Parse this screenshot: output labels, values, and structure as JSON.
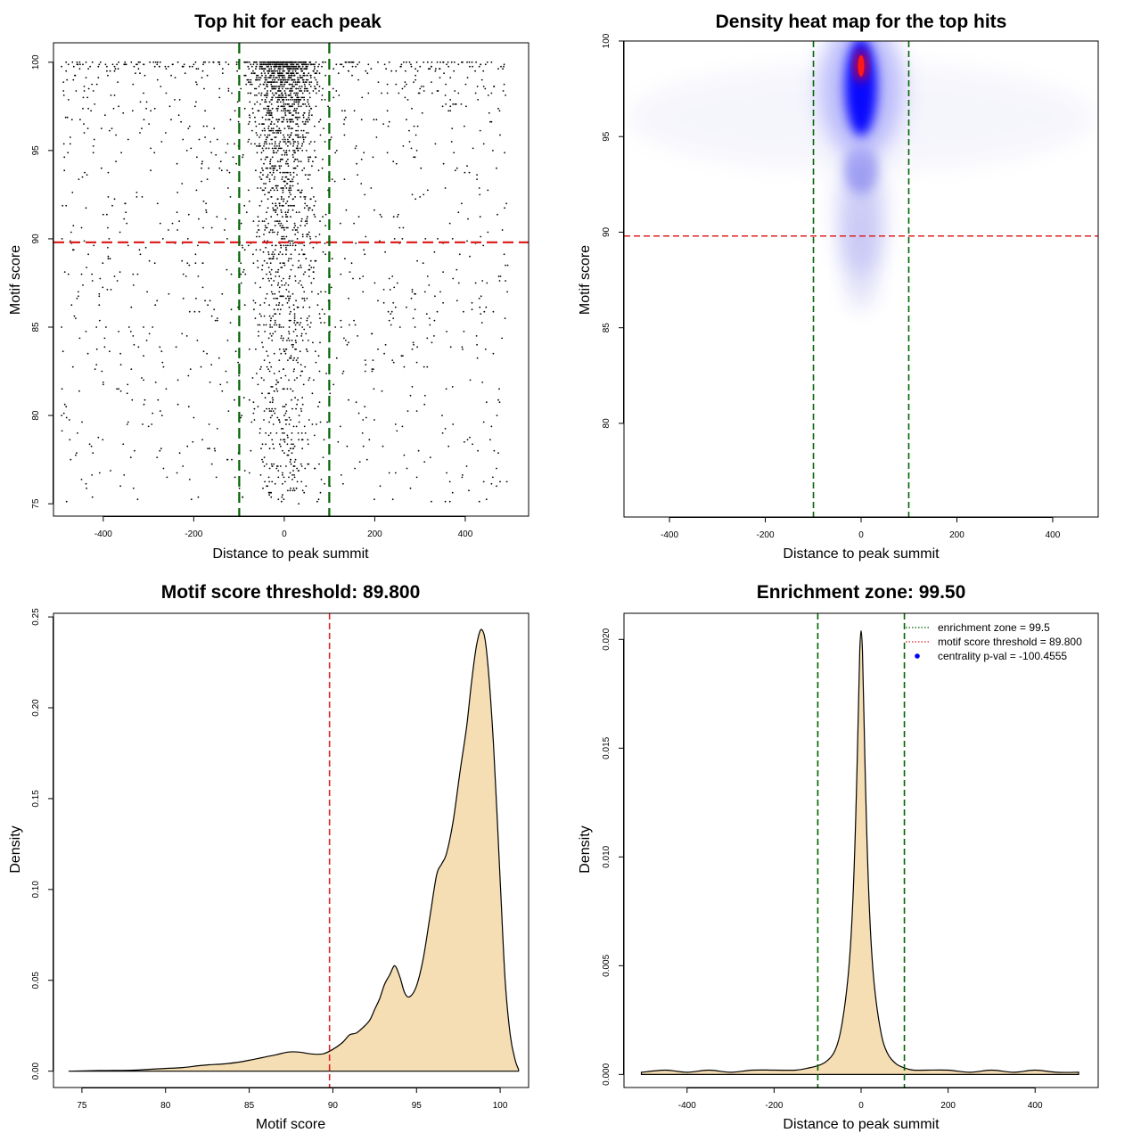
{
  "chart_data": [
    {
      "type": "scatter",
      "title": "Top hit for each peak",
      "xlabel": "Distance to peak summit",
      "ylabel": "Motif score",
      "xlim": [
        -510,
        540
      ],
      "ylim": [
        74.3,
        101.1
      ],
      "x_ticks": [
        "-400",
        "-200",
        "0",
        "200",
        "400"
      ],
      "x_tick_values": [
        -400,
        -200,
        0,
        200,
        400
      ],
      "y_ticks": [
        "75",
        "80",
        "85",
        "90",
        "95",
        "100"
      ],
      "y_tick_values": [
        75,
        80,
        85,
        90,
        95,
        100
      ],
      "color_points": "#000000",
      "threshold_y": 89.8,
      "enrichment_x": [
        -99.5,
        99.5
      ],
      "color_threshold": "#dd2222",
      "color_enrichment": "#006400",
      "points_description_count": 3000
    },
    {
      "type": "heatmap",
      "title": "Density heat map for the top hits",
      "xlabel": "Distance to peak summit",
      "ylabel": "Motif score",
      "xlim": [
        -495,
        495
      ],
      "ylim": [
        75.1,
        100.0
      ],
      "x_ticks": [
        "-400",
        "-200",
        "0",
        "200",
        "400"
      ],
      "x_tick_values": [
        -400,
        -200,
        0,
        200,
        400
      ],
      "y_ticks": [
        "80",
        "85",
        "90",
        "95",
        "100"
      ],
      "y_tick_values": [
        80,
        85,
        90,
        95,
        100
      ],
      "color_scale": [
        "#ffffff",
        "#0000ff",
        "#ff0000"
      ],
      "hotspots": [
        {
          "x": 0,
          "y": 98.6,
          "peak": "red"
        },
        {
          "x": 0,
          "y": 96.8,
          "peak": "blue"
        },
        {
          "x": 0,
          "y": 93.3,
          "peak": "light-blue"
        }
      ],
      "threshold_y": 89.8,
      "enrichment_x": [
        -99.5,
        99.5
      ],
      "color_threshold": "#dd2222",
      "color_enrichment": "#006400"
    },
    {
      "type": "area",
      "title": "Motif score threshold: 89.800",
      "xlabel": "Motif score",
      "ylabel": "Density",
      "xlim": [
        73.3,
        101.7
      ],
      "ylim": [
        -0.009,
        0.252
      ],
      "x_ticks": [
        "75",
        "80",
        "85",
        "90",
        "95",
        "100"
      ],
      "x_tick_values": [
        75,
        80,
        85,
        90,
        95,
        100
      ],
      "y_ticks": [
        "0.00",
        "0.05",
        "0.10",
        "0.15",
        "0.20",
        "0.25"
      ],
      "y_tick_values": [
        0,
        0.05,
        0.1,
        0.15,
        0.2,
        0.25
      ],
      "fill_color": "#f5deb3",
      "threshold_x": 89.8,
      "color_threshold": "#dd2222",
      "x": [
        74.2,
        76,
        78,
        79,
        80,
        81,
        82,
        82.6,
        83.5,
        84.4,
        85,
        85.8,
        86.6,
        87.3,
        88,
        88.7,
        89.4,
        90,
        90.6,
        91,
        91.4,
        91.8,
        92.2,
        92.5,
        92.8,
        93.1,
        93.4,
        93.7,
        94,
        94.3,
        94.6,
        95,
        95.4,
        95.8,
        96.2,
        96.5,
        96.8,
        97.2,
        97.6,
        98,
        98.3,
        98.6,
        98.9,
        99.2,
        99.6,
        100,
        100.3,
        100.6,
        100.9,
        101.1
      ],
      "y": [
        0,
        0.0003,
        0.0005,
        0.001,
        0.0015,
        0.002,
        0.003,
        0.0035,
        0.004,
        0.005,
        0.006,
        0.0075,
        0.009,
        0.0105,
        0.0105,
        0.0095,
        0.0095,
        0.012,
        0.016,
        0.02,
        0.021,
        0.024,
        0.028,
        0.034,
        0.04,
        0.048,
        0.053,
        0.058,
        0.052,
        0.043,
        0.041,
        0.047,
        0.062,
        0.085,
        0.108,
        0.114,
        0.12,
        0.138,
        0.165,
        0.19,
        0.215,
        0.235,
        0.243,
        0.23,
        0.18,
        0.105,
        0.05,
        0.02,
        0.006,
        0.001
      ]
    },
    {
      "type": "area",
      "title": "Enrichment zone: 99.50",
      "xlabel": "Distance to peak summit",
      "ylabel": "Density",
      "xlim": [
        -545,
        545
      ],
      "ylim": [
        -0.0006,
        0.0212
      ],
      "x_ticks": [
        "-400",
        "-200",
        "0",
        "200",
        "400"
      ],
      "x_tick_values": [
        -400,
        -200,
        0,
        200,
        400
      ],
      "y_ticks": [
        "0.000",
        "0.005",
        "0.010",
        "0.015",
        "0.020"
      ],
      "y_tick_values": [
        0,
        0.005,
        0.01,
        0.015,
        0.02
      ],
      "fill_color": "#f5deb3",
      "enrichment_x": [
        -99.5,
        99.5
      ],
      "color_enrichment": "#006400",
      "x": [
        -505,
        -450,
        -400,
        -350,
        -300,
        -250,
        -200,
        -150,
        -120,
        -100,
        -80,
        -60,
        -45,
        -30,
        -20,
        -12,
        -6,
        -3,
        0,
        3,
        6,
        12,
        20,
        30,
        45,
        60,
        80,
        100,
        120,
        150,
        200,
        250,
        300,
        350,
        400,
        450,
        500
      ],
      "y": [
        0.0001,
        0.0002,
        0.0001,
        0.0002,
        0.0001,
        0.0002,
        0.0002,
        0.0002,
        0.0003,
        0.0004,
        0.0006,
        0.0011,
        0.0022,
        0.0045,
        0.0075,
        0.012,
        0.017,
        0.0195,
        0.0204,
        0.0195,
        0.017,
        0.0118,
        0.0072,
        0.0042,
        0.002,
        0.001,
        0.0005,
        0.0003,
        0.0002,
        0.0002,
        0.0002,
        0.0001,
        0.0002,
        0.0001,
        0.0002,
        0.0001,
        0.0001
      ],
      "legend_position": "top-right",
      "legend": [
        {
          "label": "enrichment zone = 99.5",
          "color": "#006400",
          "style": "dotted-line"
        },
        {
          "label": "motif score threshold = 89.800",
          "color": "#dd2222",
          "style": "dotted-line"
        },
        {
          "label": "centrality p-val = -100.4555",
          "color": "#0000ff",
          "style": "point"
        }
      ]
    }
  ]
}
